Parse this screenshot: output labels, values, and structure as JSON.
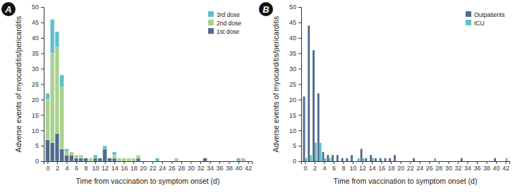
{
  "chart_data": [
    {
      "type": "bar",
      "title": "A",
      "stacked": true,
      "legend": "upper right",
      "grid": false,
      "x_label": "Time from vaccination to symptom onset (d)",
      "y_label": "Adverse events of myocarditis/pericarditis",
      "x": [
        0,
        1,
        2,
        3,
        4,
        5,
        6,
        7,
        8,
        9,
        10,
        11,
        12,
        13,
        14,
        15,
        16,
        17,
        18,
        19,
        23,
        27,
        33,
        40,
        41
      ],
      "xlim": [
        -0.8,
        42.8
      ],
      "xticks": [
        0,
        2,
        4,
        6,
        8,
        10,
        12,
        14,
        16,
        18,
        20,
        22,
        24,
        26,
        28,
        30,
        32,
        34,
        36,
        38,
        40,
        42
      ],
      "ylim": [
        0,
        50
      ],
      "yticks": [
        0,
        5,
        10,
        15,
        20,
        25,
        30,
        35,
        40,
        45,
        50
      ],
      "series": [
        {
          "name": "1st dose",
          "color": "#4f6b8c",
          "values": [
            7,
            6,
            9,
            4,
            2,
            2,
            1,
            1,
            1,
            0,
            1,
            1,
            4,
            1,
            1,
            0,
            0,
            0,
            0,
            1,
            0,
            0,
            1,
            0,
            0
          ]
        },
        {
          "name": "2nd dose",
          "color": "#a9d18e",
          "values": [
            13,
            29,
            28,
            20,
            1,
            1,
            1,
            1,
            0,
            1,
            0,
            0,
            0,
            0,
            1,
            1,
            1,
            1,
            1,
            1,
            0,
            1,
            0,
            0,
            1
          ]
        },
        {
          "name": "3rd dose",
          "color": "#5fbfca",
          "values": [
            2,
            11,
            5,
            4,
            1,
            0,
            0,
            0,
            0,
            0,
            1,
            0,
            1,
            0,
            1,
            0,
            0,
            0,
            0,
            0,
            1,
            0,
            0,
            1,
            0
          ]
        }
      ]
    },
    {
      "type": "bar",
      "title": "B",
      "stacked": false,
      "legend": "upper right",
      "grid": false,
      "x_label": "Time from vaccination to symptom onset (d)",
      "y_label": "Adverse events of myocarditis/pericarditis",
      "x": [
        0,
        1,
        2,
        3,
        4,
        5,
        6,
        7,
        8,
        9,
        10,
        11,
        12,
        13,
        14,
        15,
        16,
        17,
        18,
        19,
        23,
        27,
        33,
        40,
        42
      ],
      "xlim": [
        -0.8,
        42.8
      ],
      "xticks": [
        0,
        2,
        4,
        6,
        8,
        10,
        12,
        14,
        16,
        18,
        20,
        22,
        24,
        26,
        28,
        30,
        32,
        34,
        36,
        38,
        40,
        42
      ],
      "ylim": [
        0,
        50
      ],
      "yticks": [
        0,
        5,
        10,
        15,
        20,
        25,
        30,
        35,
        40,
        45,
        50
      ],
      "series": [
        {
          "name": "Outpatients",
          "color": "#4f6b8c",
          "values": [
            21,
            44,
            36,
            22,
            3,
            2,
            2,
            2,
            1,
            1,
            2,
            0,
            4,
            1,
            2,
            1,
            1,
            1,
            1,
            2,
            1,
            0,
            1,
            1,
            0
          ]
        },
        {
          "name": "ICU",
          "color": "#5fbfca",
          "values": [
            1,
            2,
            6,
            6,
            1,
            1,
            0,
            0,
            0,
            0,
            0,
            1,
            1,
            0,
            1,
            0,
            0,
            0,
            0,
            0,
            0,
            1,
            0,
            0,
            1
          ]
        }
      ]
    }
  ]
}
